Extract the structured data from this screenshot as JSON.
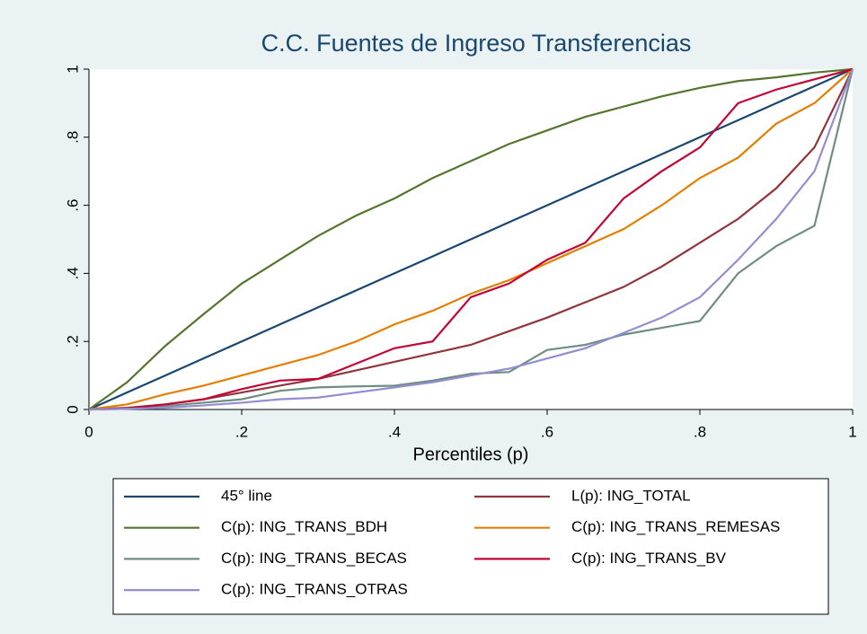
{
  "chart_data": {
    "type": "line",
    "title": "C.C. Fuentes de Ingreso Transferencias",
    "x_label": "Percentiles (p)",
    "x": [
      0,
      0.05,
      0.1,
      0.15,
      0.2,
      0.25,
      0.3,
      0.35,
      0.4,
      0.45,
      0.5,
      0.55,
      0.6,
      0.65,
      0.7,
      0.75,
      0.8,
      0.85,
      0.9,
      0.95,
      1
    ],
    "series": [
      {
        "name": "45° line",
        "color": "#1a476f",
        "values": [
          0,
          0.05,
          0.1,
          0.15,
          0.2,
          0.25,
          0.3,
          0.35,
          0.4,
          0.45,
          0.5,
          0.55,
          0.6,
          0.65,
          0.7,
          0.75,
          0.8,
          0.85,
          0.9,
          0.95,
          1
        ]
      },
      {
        "name": "L(p): ING_TOTAL",
        "color": "#90353b",
        "values": [
          0,
          0.005,
          0.015,
          0.03,
          0.05,
          0.07,
          0.09,
          0.115,
          0.14,
          0.165,
          0.19,
          0.23,
          0.27,
          0.315,
          0.36,
          0.42,
          0.49,
          0.56,
          0.65,
          0.77,
          1
        ]
      },
      {
        "name": "C(p): ING_TRANS_BDH",
        "color": "#55752f",
        "values": [
          0,
          0.08,
          0.187,
          0.28,
          0.37,
          0.44,
          0.51,
          0.57,
          0.62,
          0.68,
          0.73,
          0.78,
          0.82,
          0.86,
          0.89,
          0.92,
          0.945,
          0.965,
          0.976,
          0.99,
          1
        ]
      },
      {
        "name": "C(p): ING_TRANS_REMESAS",
        "color": "#e37e00",
        "values": [
          0,
          0.015,
          0.045,
          0.07,
          0.1,
          0.13,
          0.16,
          0.2,
          0.25,
          0.29,
          0.34,
          0.38,
          0.43,
          0.48,
          0.53,
          0.6,
          0.68,
          0.74,
          0.84,
          0.9,
          1
        ]
      },
      {
        "name": "C(p): ING_TRANS_BECAS",
        "color": "#6e8e84",
        "values": [
          0,
          0.002,
          0.01,
          0.02,
          0.03,
          0.055,
          0.065,
          0.068,
          0.07,
          0.085,
          0.105,
          0.11,
          0.175,
          0.19,
          0.22,
          0.24,
          0.26,
          0.4,
          0.48,
          0.54,
          1
        ]
      },
      {
        "name": "C(p): ING_TRANS_BV",
        "color": "#c10534",
        "values": [
          0,
          0.003,
          0.015,
          0.03,
          0.06,
          0.085,
          0.09,
          0.135,
          0.18,
          0.2,
          0.33,
          0.37,
          0.44,
          0.49,
          0.62,
          0.7,
          0.77,
          0.9,
          0.94,
          0.97,
          1
        ]
      },
      {
        "name": "C(p): ING_TRANS_OTRAS",
        "color": "#938dd2",
        "values": [
          0,
          0.002,
          0.005,
          0.012,
          0.02,
          0.03,
          0.035,
          0.05,
          0.065,
          0.08,
          0.1,
          0.12,
          0.15,
          0.18,
          0.225,
          0.27,
          0.33,
          0.44,
          0.56,
          0.7,
          1
        ]
      }
    ],
    "xlim": [
      0,
      1
    ],
    "ylim": [
      0,
      1
    ],
    "xticks": [
      0,
      {
        "value": 0.2,
        "label": ".2"
      },
      {
        "value": 0.4,
        "label": ".4"
      },
      {
        "value": 0.6,
        "label": ".6"
      },
      {
        "value": 0.8,
        "label": ".8"
      },
      1
    ],
    "yticks": [
      0,
      {
        "value": 0.2,
        "label": ".2"
      },
      {
        "value": 0.4,
        "label": ".4"
      },
      {
        "value": 0.6,
        "label": ".6"
      },
      {
        "value": 0.8,
        "label": ".8"
      },
      1
    ],
    "legend_position": "bottom"
  }
}
